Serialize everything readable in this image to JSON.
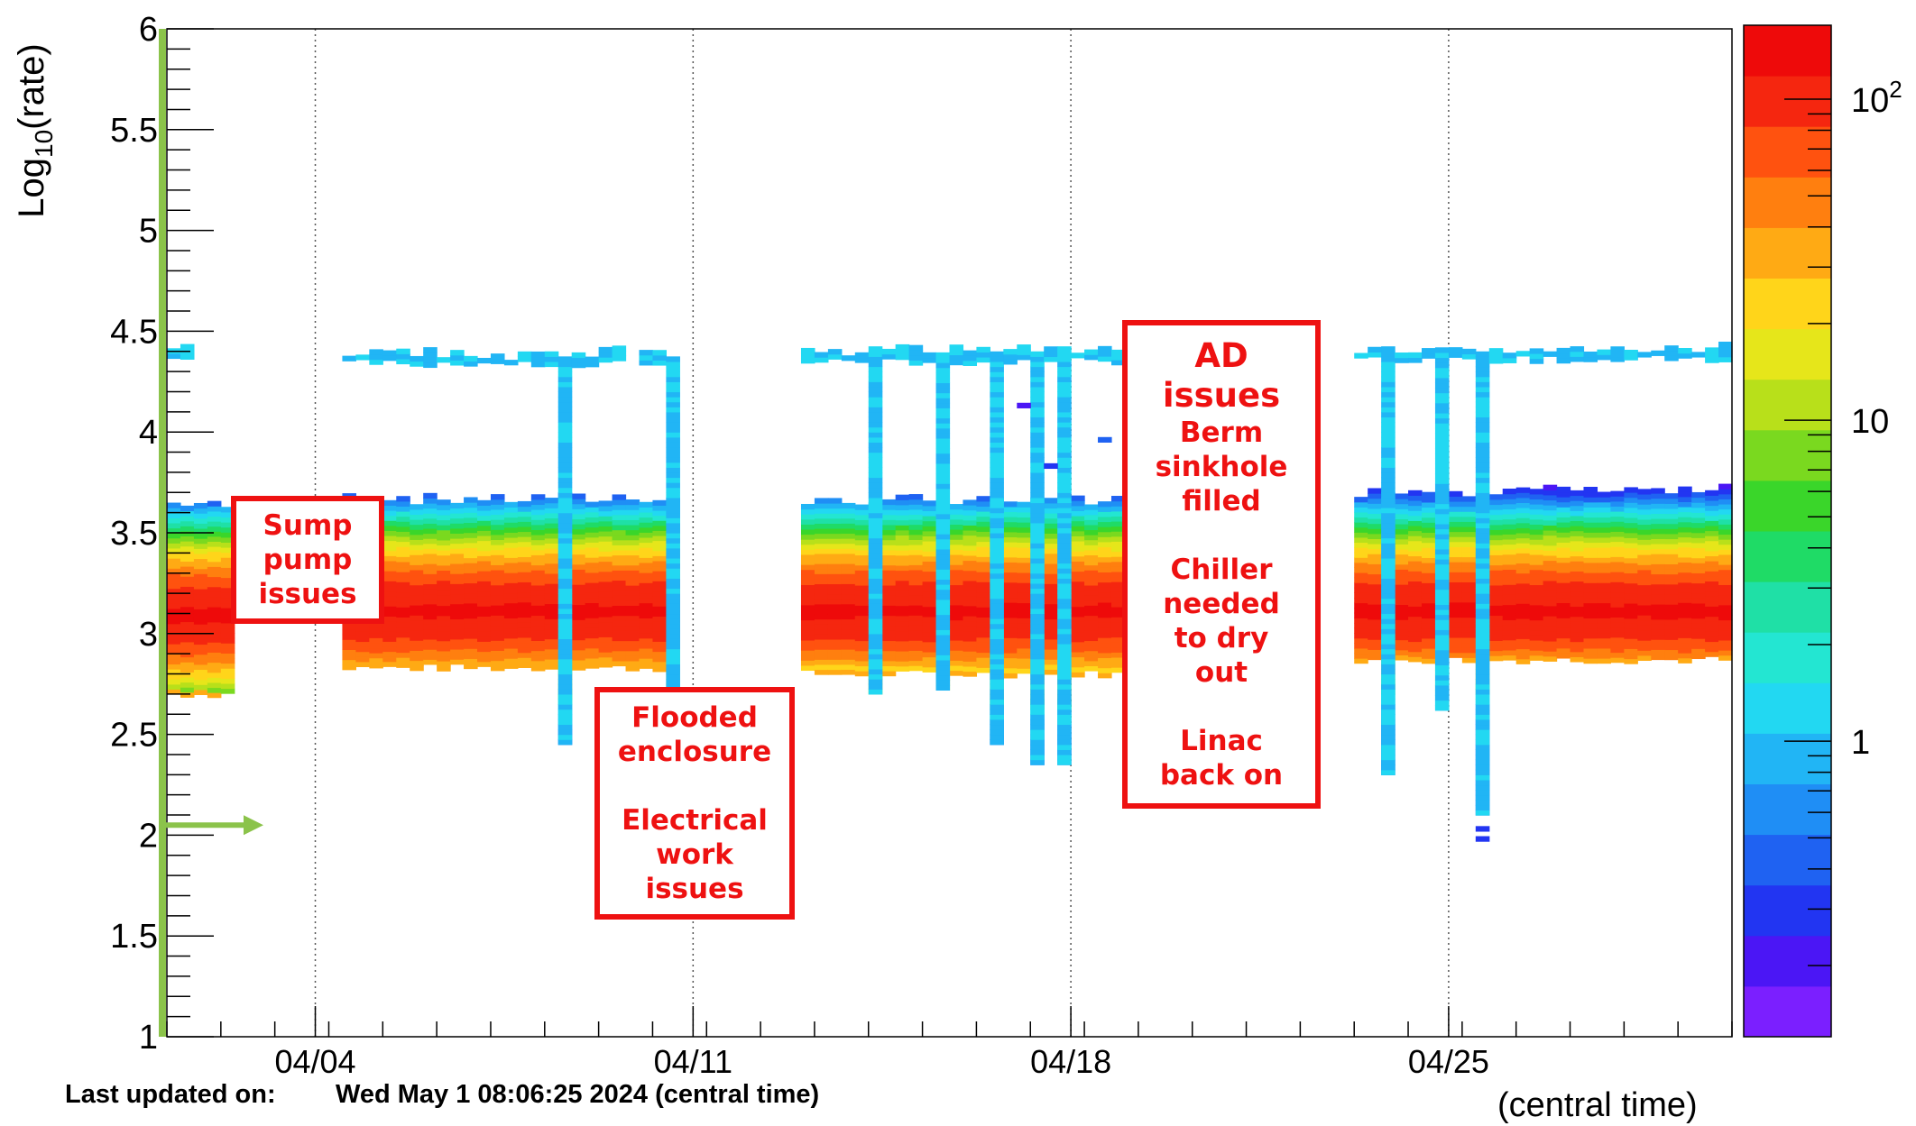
{
  "chart_data": {
    "type": "heatmap",
    "title": "",
    "xlabel": "(central time)",
    "ylabel": "Log10(rate)",
    "ylabel_main": "Log",
    "ylabel_sub": "10",
    "ylabel_tail": "(rate)",
    "x_axis_type": "date",
    "xlim": [
      "2024-04-01T06:00",
      "2024-04-30T06:00"
    ],
    "x_ticks": [
      {
        "date": "2024-04-04",
        "label": "04/04"
      },
      {
        "date": "2024-04-11",
        "label": "04/11"
      },
      {
        "date": "2024-04-18",
        "label": "04/18"
      },
      {
        "date": "2024-04-25",
        "label": "04/25"
      }
    ],
    "ylim": [
      1,
      6
    ],
    "y_ticks": [
      {
        "value": 1,
        "label": "1"
      },
      {
        "value": 1.5,
        "label": "1.5"
      },
      {
        "value": 2,
        "label": "2"
      },
      {
        "value": 2.5,
        "label": "2.5"
      },
      {
        "value": 3,
        "label": "3"
      },
      {
        "value": 3.5,
        "label": "3.5"
      },
      {
        "value": 4,
        "label": "4"
      },
      {
        "value": 4.5,
        "label": "4.5"
      },
      {
        "value": 5,
        "label": "5"
      },
      {
        "value": 5.5,
        "label": "5.5"
      },
      {
        "value": 6,
        "label": "6"
      }
    ],
    "grid": {
      "x": true,
      "y": false
    },
    "colorbar": {
      "scale": "log",
      "range": [
        0.12,
        170
      ],
      "ticks": [
        {
          "value": 1,
          "label": "1",
          "sup": ""
        },
        {
          "value": 10,
          "label": "10",
          "sup": ""
        },
        {
          "value": 100,
          "label": "10",
          "sup": "2"
        }
      ]
    },
    "bands": [
      {
        "name": "main",
        "start": "2024-04-01T06:00",
        "end": "2024-04-02T12:00",
        "low": 2.7,
        "high": 3.63,
        "center": 3.08
      },
      {
        "name": "main",
        "start": "2024-04-04T12:00",
        "end": "2024-04-10T18:00",
        "low": 2.83,
        "high": 3.66,
        "center": 3.1
      },
      {
        "name": "main",
        "start": "2024-04-13T00:00",
        "end": "2024-04-19T18:00",
        "low": 2.8,
        "high": 3.65,
        "center": 3.1
      },
      {
        "name": "main",
        "start": "2024-04-23T06:00",
        "end": "2024-04-30T06:00",
        "low": 2.87,
        "high": 3.7,
        "center": 3.1
      },
      {
        "name": "upper",
        "start": "2024-04-01T06:00",
        "end": "2024-04-01T18:00",
        "low": 4.35,
        "high": 4.4,
        "center": 4.38
      },
      {
        "name": "upper",
        "start": "2024-04-04T12:00",
        "end": "2024-04-10T18:00",
        "low": 4.34,
        "high": 4.38,
        "center": 4.36
      },
      {
        "name": "upper",
        "start": "2024-04-13T00:00",
        "end": "2024-04-19T18:00",
        "low": 4.35,
        "high": 4.4,
        "center": 4.38
      },
      {
        "name": "upper",
        "start": "2024-04-23T06:00",
        "end": "2024-04-30T06:00",
        "low": 4.36,
        "high": 4.4,
        "center": 4.38
      }
    ],
    "dips": [
      {
        "date": "2024-04-08T12:00",
        "low": 2.45
      },
      {
        "date": "2024-04-10T12:00",
        "low": 2.7
      },
      {
        "date": "2024-04-14T06:00",
        "low": 2.7
      },
      {
        "date": "2024-04-15T12:00",
        "low": 2.72
      },
      {
        "date": "2024-04-16T12:00",
        "low": 2.45
      },
      {
        "date": "2024-04-17T06:00",
        "low": 2.35
      },
      {
        "date": "2024-04-17T18:00",
        "low": 2.35
      },
      {
        "date": "2024-04-23T18:00",
        "low": 2.3
      },
      {
        "date": "2024-04-24T18:00",
        "low": 2.62
      },
      {
        "date": "2024-04-25T12:00",
        "low": 2.1
      }
    ],
    "extra_cells": [
      {
        "date": "2024-04-17T12:00",
        "value": 3.82,
        "count": 0.3
      },
      {
        "date": "2024-04-17T00:00",
        "value": 4.12,
        "count": 0.2
      },
      {
        "date": "2024-04-18T12:00",
        "value": 3.95,
        "count": 0.4
      },
      {
        "date": "2024-04-19T06:00",
        "value": 3.98,
        "count": 0.4
      },
      {
        "date": "2024-04-25T12:00",
        "value": 2.02,
        "count": 0.3
      },
      {
        "date": "2024-04-25T12:00",
        "value": 1.97,
        "count": 0.3
      }
    ]
  },
  "annotations": [
    {
      "lines": [
        "Sump",
        "pump",
        "issues"
      ]
    },
    {
      "lines": [
        "Flooded",
        "enclosure",
        "",
        "Electrical",
        "work",
        "issues"
      ]
    },
    {
      "lines": [
        "AD",
        "issues",
        "Berm",
        "sinkhole",
        "filled",
        "",
        "Chiller",
        "needed",
        "to dry",
        "out",
        "",
        "Linac",
        "back on"
      ]
    }
  ],
  "footer": {
    "updated_label": "Last updated on:",
    "updated_value": "Wed May  1 08:06:25 2024 (central time)"
  },
  "colors": {
    "annotation": "#ee1111",
    "marker": "#8bc34a",
    "axis": "#000000",
    "palette": [
      "#7b1fff",
      "#4b16f5",
      "#2235f2",
      "#1f62f2",
      "#1f8ef5",
      "#21b5f5",
      "#22d8f2",
      "#23e6d2",
      "#1fe0a6",
      "#1fdb66",
      "#3ad62a",
      "#7ad91f",
      "#b8e01a",
      "#e6e61a",
      "#ffd51a",
      "#ffaa14",
      "#ff7f0f",
      "#ff520f",
      "#f5260f",
      "#ee0a0a"
    ]
  }
}
